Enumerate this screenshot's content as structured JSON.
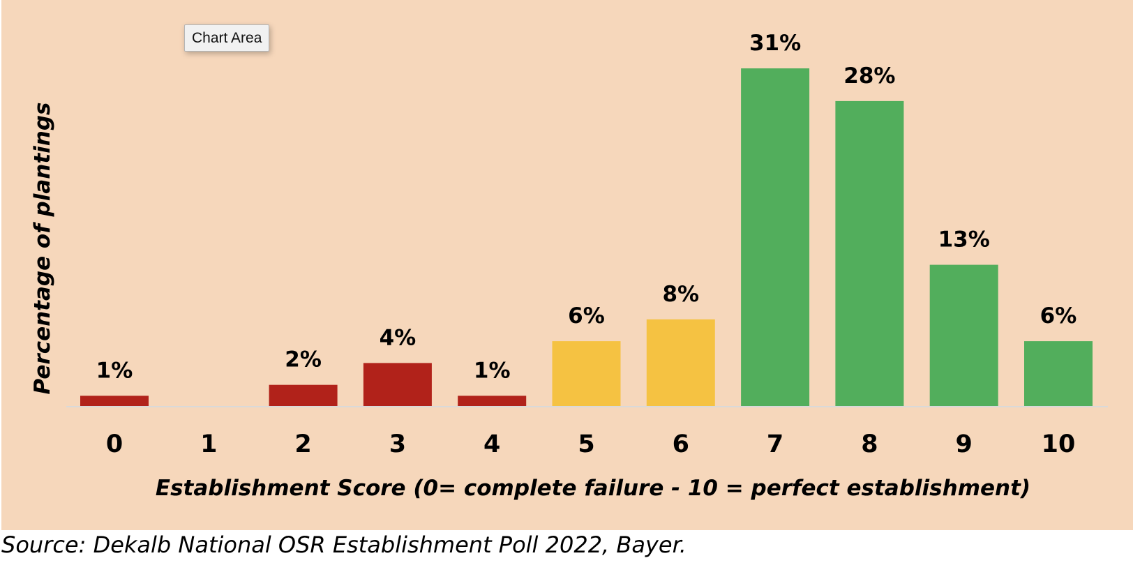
{
  "colors": {
    "background": "#f6d7bb",
    "red": "#b1221a",
    "yellow": "#f5c242",
    "green": "#52ae5c",
    "axis_line": "#d9d9d9"
  },
  "tooltip": {
    "label": "Chart Area"
  },
  "source_text": "Source: Dekalb National OSR Establishment Poll 2022, Bayer.",
  "chart_data": {
    "type": "bar",
    "title": "",
    "xlabel": "Establishment Score (0= complete failure - 10 = perfect establishment)",
    "ylabel": "Percentage of plantings",
    "categories": [
      "0",
      "1",
      "2",
      "3",
      "4",
      "5",
      "6",
      "7",
      "8",
      "9",
      "10"
    ],
    "values": [
      1,
      0,
      2,
      4,
      1,
      6,
      8,
      31,
      28,
      13,
      6
    ],
    "data_labels": [
      "1%",
      "",
      "2%",
      "4%",
      "1%",
      "6%",
      "8%",
      "31%",
      "28%",
      "13%",
      "6%"
    ],
    "bar_colors": [
      "red",
      "red",
      "red",
      "red",
      "red",
      "yellow",
      "yellow",
      "green",
      "green",
      "green",
      "green"
    ],
    "ylim": [
      0,
      31
    ],
    "grid": false,
    "legend": "none"
  }
}
